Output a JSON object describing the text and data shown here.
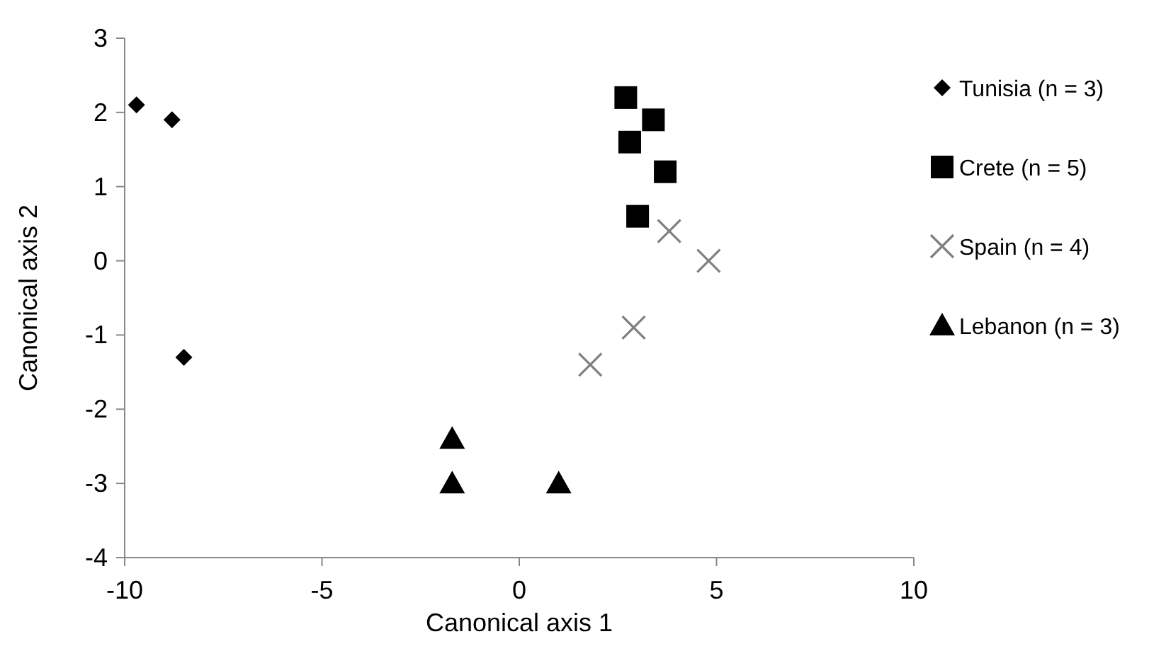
{
  "chart_data": {
    "type": "scatter",
    "xlabel": "Canonical axis  1",
    "ylabel": "Canonical axis 2",
    "xlim": [
      -10,
      10
    ],
    "xticks": [
      -10,
      -5,
      0,
      5,
      10
    ],
    "ylim": [
      -4,
      3
    ],
    "yticks": [
      -4,
      -3,
      -2,
      -1,
      0,
      1,
      2,
      3
    ],
    "grid": false,
    "legend": "right",
    "series": [
      {
        "name": "Tunisia (n = 3)",
        "color": "#000000",
        "marker": "diamond",
        "x": [
          -9.7,
          -8.8,
          -8.5
        ],
        "values": [
          2.1,
          1.9,
          -1.3
        ]
      },
      {
        "name": "Crete (n = 5)",
        "color": "#000000",
        "marker": "square",
        "x": [
          2.7,
          3.4,
          2.8,
          3.7,
          3.0
        ],
        "values": [
          2.2,
          1.9,
          1.6,
          1.2,
          0.6
        ]
      },
      {
        "name": "Spain (n = 4)",
        "color": "#808080",
        "marker": "cross",
        "x": [
          3.8,
          4.8,
          2.9,
          1.8
        ],
        "values": [
          0.4,
          0.0,
          -0.9,
          -1.4
        ]
      },
      {
        "name": "Lebanon (n = 3)",
        "color": "#000000",
        "marker": "triangle",
        "x": [
          -1.7,
          -1.7,
          1.0
        ],
        "values": [
          -2.4,
          -3.0,
          -3.0
        ]
      }
    ]
  }
}
